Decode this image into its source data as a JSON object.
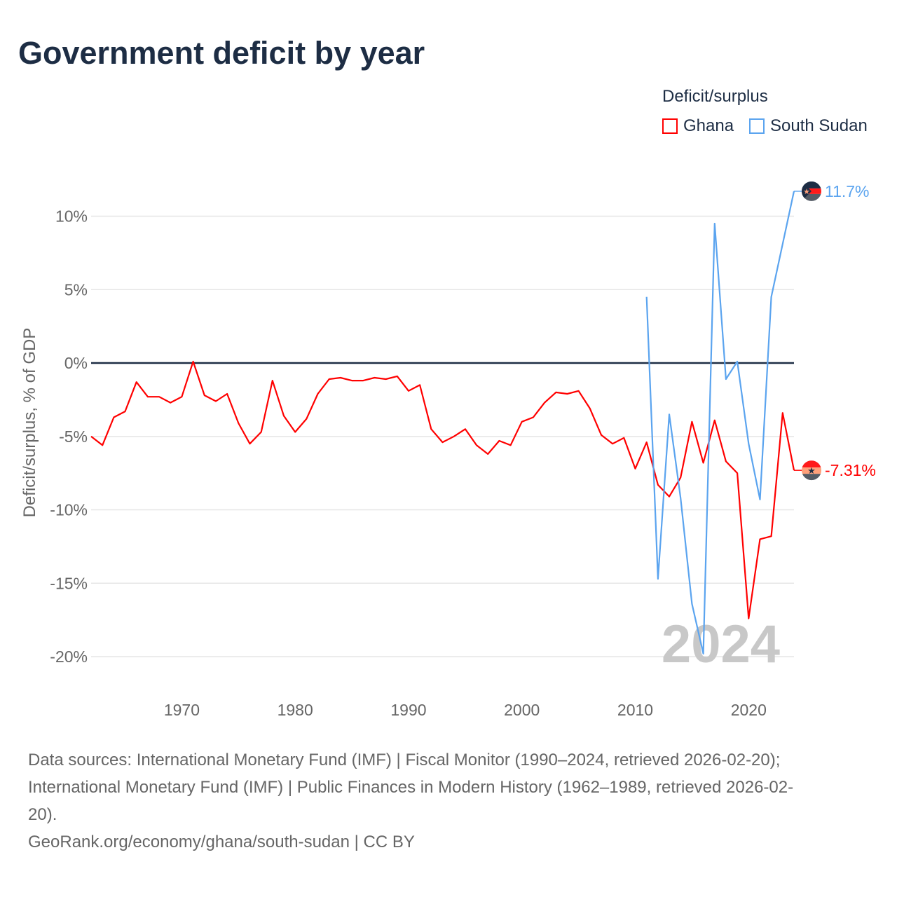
{
  "title": "Government deficit by year",
  "legend": {
    "title": "Deficit/surplus",
    "items": [
      {
        "label": "Ghana",
        "color": "#ff0000"
      },
      {
        "label": "South Sudan",
        "color": "#5ba4ef"
      }
    ]
  },
  "watermark_year": "2024",
  "sources": {
    "line1": "Data sources: International Monetary Fund (IMF) | Fiscal Monitor (1990–2024, retrieved 2026-02-20);",
    "line2": "International Monetary Fund (IMF) | Public Finances in Modern History (1962–1989, retrieved 2026-02-",
    "line3": "20).",
    "line4": "GeoRank.org/economy/ghana/south-sudan | CC BY"
  },
  "chart_data": {
    "type": "line",
    "title": "Government deficit by year",
    "xlabel": "",
    "ylabel": "Deficit/surplus, % of GDP",
    "xlim": [
      1962,
      2024
    ],
    "ylim": [
      -22,
      12
    ],
    "xticks": [
      1970,
      1980,
      1990,
      2000,
      2010,
      2020
    ],
    "yticks": [
      10,
      5,
      0,
      -5,
      -10,
      -15,
      -20
    ],
    "ytick_labels": [
      "10%",
      "5%",
      "0%",
      "-5%",
      "-10%",
      "-15%",
      "-20%"
    ],
    "grid": true,
    "legend_position": "top-right",
    "series": [
      {
        "name": "Ghana",
        "color": "#ff0000",
        "end_label": "-7.31%",
        "x_start": 1962,
        "values": [
          -5.0,
          -5.6,
          -3.7,
          -3.3,
          -1.3,
          -2.3,
          -2.3,
          -2.7,
          -2.3,
          0.1,
          -2.2,
          -2.6,
          -2.1,
          -4.1,
          -5.5,
          -4.7,
          -1.2,
          -3.6,
          -4.7,
          -3.8,
          -2.1,
          -1.1,
          -1.0,
          -1.2,
          -1.2,
          -1.0,
          -1.1,
          -0.9,
          -1.9,
          -1.5,
          -4.5,
          -5.4,
          -5.0,
          -4.5,
          -5.6,
          -6.2,
          -5.3,
          -5.6,
          -4.0,
          -3.7,
          -2.7,
          -2.0,
          -2.1,
          -1.9,
          -3.1,
          -4.9,
          -5.5,
          -5.1,
          -7.2,
          -5.4,
          -8.3,
          -9.1,
          -7.8,
          -4.0,
          -6.8,
          -3.9,
          -6.7,
          -7.5,
          -17.4,
          -12.0,
          -11.8,
          -3.4,
          -7.31
        ]
      },
      {
        "name": "South Sudan",
        "color": "#5ba4ef",
        "end_label": "11.7%",
        "x_start": 2011,
        "values": [
          4.5,
          -14.7,
          -3.5,
          -9.2,
          -16.4,
          -19.8,
          9.5,
          -1.1,
          0.1,
          -5.5,
          -9.3,
          4.5,
          8.1,
          11.7
        ]
      }
    ]
  }
}
